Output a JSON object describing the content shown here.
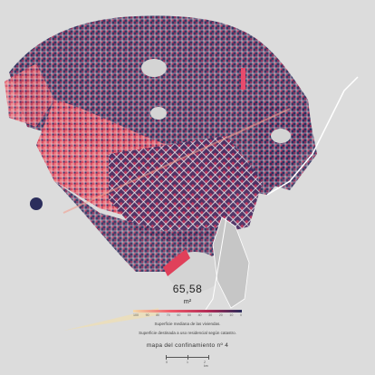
{
  "metric": {
    "value": "65,58",
    "unit": "m²"
  },
  "legend": {
    "ticks": [
      "100",
      "90",
      "80",
      "70",
      "60",
      "50",
      "40",
      "30",
      "20",
      "10",
      "0"
    ],
    "note_line1": "Superficie mediana de las viviendas.",
    "note_line2": "Superficie destinada a uso residencial según catastro."
  },
  "subtitle": "mapa del confinamiento nº 4",
  "scale_bar": {
    "labels": [
      "0",
      "1",
      "2 km"
    ]
  },
  "colors": {
    "background": "#dcdcdc",
    "low": "#2b2d5c",
    "mid": "#b02a56",
    "high": "#ef5a6a",
    "highest": "#f3b39b"
  }
}
